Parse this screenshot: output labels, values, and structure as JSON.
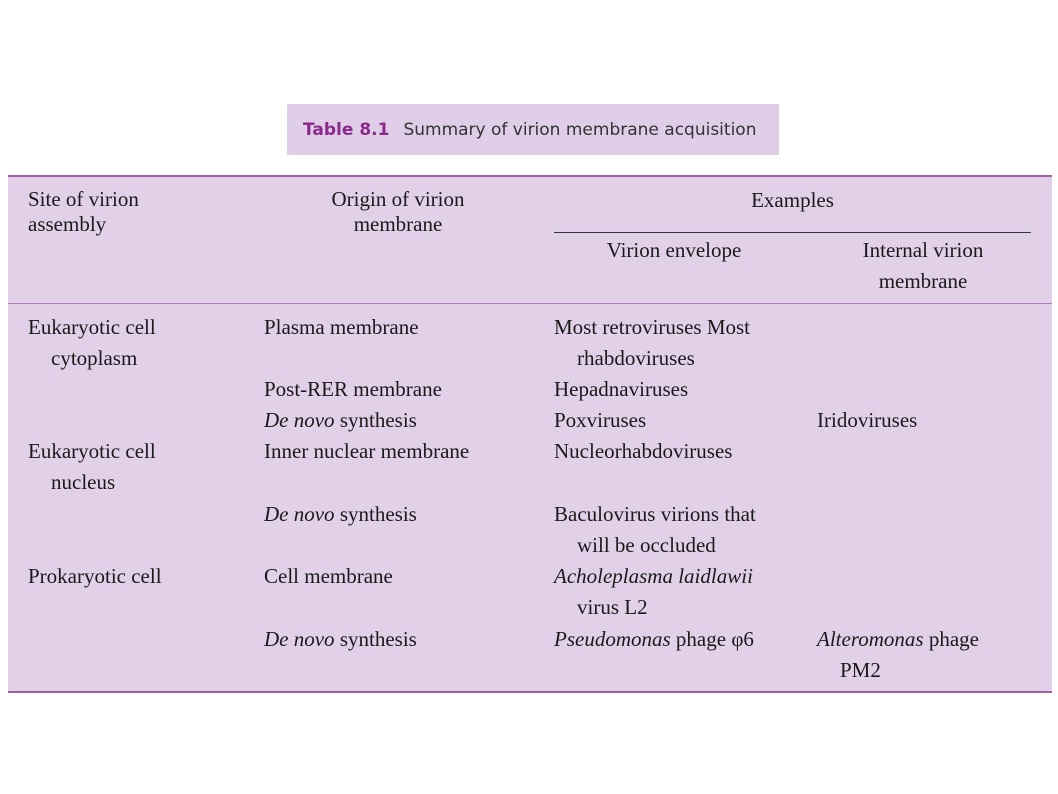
{
  "caption": {
    "number": "Table 8.1",
    "title": "Summary of virion membrane acquisition"
  },
  "headers": {
    "site": [
      "Site of virion",
      "assembly"
    ],
    "origin": [
      "Origin of virion",
      "membrane"
    ],
    "examples": "Examples",
    "envelope": "Virion envelope",
    "internal": [
      "Internal virion",
      "membrane"
    ]
  },
  "rows": {
    "euk_cyto": [
      "Eukaryotic cell",
      "cytoplasm"
    ],
    "euk_nuc": [
      "Eukaryotic cell",
      "nucleus"
    ],
    "prok": "Prokaryotic cell",
    "plasma": "Plasma membrane",
    "post_rer": "Post-RER membrane",
    "de_novo": "De novo",
    "synthesis": " synthesis",
    "inner_nuclear": "Inner nuclear membrane",
    "cell_membrane": "Cell membrane",
    "retro": [
      "Most retroviruses Most",
      "rhabdoviruses"
    ],
    "hepadna": "Hepadnaviruses",
    "pox": "Poxviruses",
    "irido": "Iridoviruses",
    "nucleorhabdo": "Nucleorhabdoviruses",
    "baculo": [
      "Baculovirus virions that",
      "will be occluded"
    ],
    "achole_italic": "Acholeplasma laidlawii",
    "achole_rest": "virus L2",
    "pseudo_italic": "Pseudomonas",
    "pseudo_rest": " phage φ6",
    "altero_italic": "Alteromonas",
    "altero_rest": " phage",
    "altero_line2": "PM2"
  }
}
